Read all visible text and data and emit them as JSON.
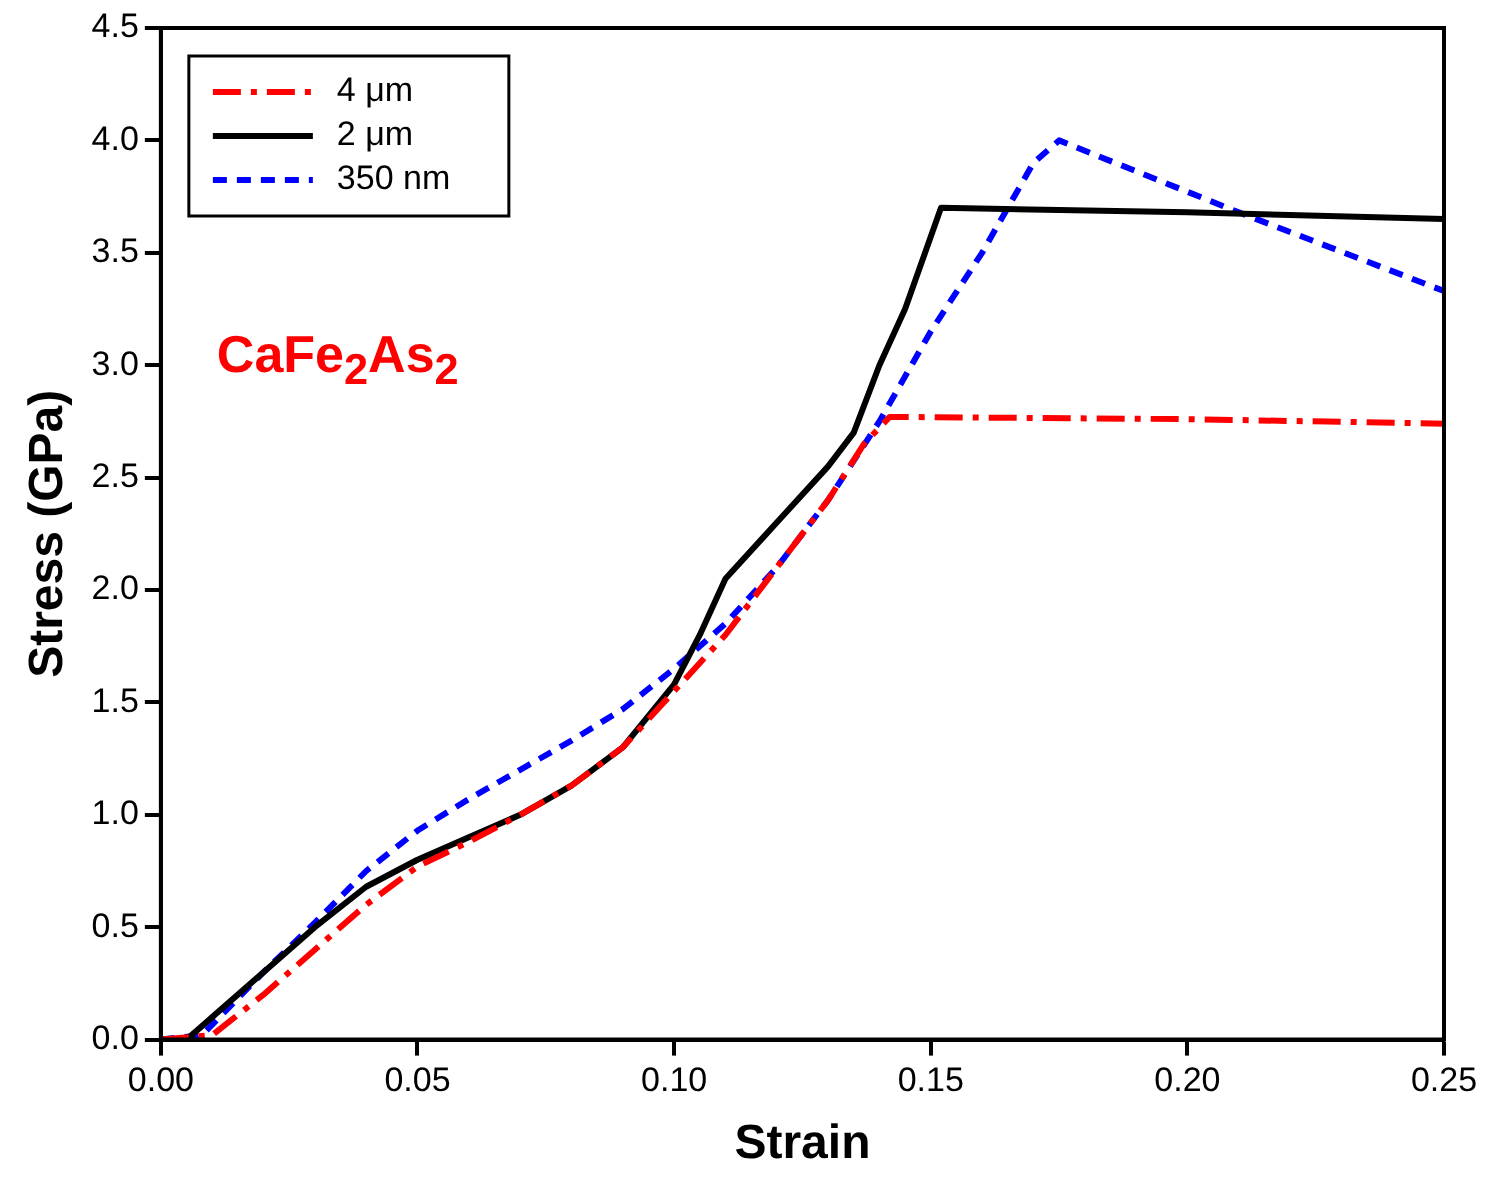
{
  "chart_data": {
    "type": "line",
    "xlabel": "Strain",
    "ylabel": "Stress (GPa)",
    "legend": "top left",
    "marker": "none",
    "grid": false,
    "xlim": [
      0,
      0.25
    ],
    "xticks": [
      {
        "value": 0,
        "label": "0.00"
      },
      {
        "value": 0.05,
        "label": "0.05"
      },
      {
        "value": 0.1,
        "label": "0.10"
      },
      {
        "value": 0.15,
        "label": "0.15"
      },
      {
        "value": 0.2,
        "label": "0.20"
      },
      {
        "value": 0.25,
        "label": "0.25"
      }
    ],
    "ylim": [
      0,
      4.5
    ],
    "yticks": [
      {
        "value": 0,
        "label": "0.0"
      },
      {
        "value": 0.5,
        "label": "0.5"
      },
      {
        "value": 1,
        "label": "1.0"
      },
      {
        "value": 1.5,
        "label": "1.5"
      },
      {
        "value": 2,
        "label": "2.0"
      },
      {
        "value": 2.5,
        "label": "2.5"
      },
      {
        "value": 3,
        "label": "3.0"
      },
      {
        "value": 3.5,
        "label": "3.5"
      },
      {
        "value": 4,
        "label": "4.0"
      },
      {
        "value": 4.5,
        "label": "4.5"
      }
    ],
    "annotations": [
      "CaFe$_{2}$As$_{2}$"
    ],
    "series": [
      {
        "name": "4 μm",
        "color": "#ff0000",
        "line_style": "dashdot",
        "x": [
          0,
          0.01,
          0.02,
          0.03,
          0.04,
          0.05,
          0.06,
          0.07,
          0.08,
          0.09,
          0.1,
          0.11,
          0.12,
          0.13,
          0.137,
          0.142,
          0.2,
          0.25
        ],
        "values": [
          0,
          0.02,
          0.2,
          0.4,
          0.6,
          0.77,
          0.88,
          1.0,
          1.13,
          1.3,
          1.55,
          1.8,
          2.1,
          2.4,
          2.65,
          2.77,
          2.76,
          2.74
        ]
      },
      {
        "name": "2 μm",
        "color": "#000000",
        "line_style": "solid",
        "x": [
          0.005,
          0.01,
          0.02,
          0.03,
          0.04,
          0.05,
          0.06,
          0.07,
          0.08,
          0.09,
          0.1,
          0.105,
          0.11,
          0.12,
          0.13,
          0.135,
          0.14,
          0.145,
          0.152,
          0.2,
          0.25
        ],
        "values": [
          0,
          0.1,
          0.3,
          0.5,
          0.68,
          0.8,
          0.9,
          1.0,
          1.13,
          1.3,
          1.58,
          1.8,
          2.05,
          2.3,
          2.55,
          2.7,
          3.0,
          3.25,
          3.7,
          3.68,
          3.65
        ]
      },
      {
        "name": "350 nm",
        "color": "#0000ff",
        "line_style": "dashed",
        "x": [
          0,
          0.008,
          0.02,
          0.03,
          0.04,
          0.05,
          0.06,
          0.07,
          0.08,
          0.09,
          0.1,
          0.11,
          0.12,
          0.13,
          0.14,
          0.15,
          0.16,
          0.17,
          0.175,
          0.21,
          0.25
        ],
        "values": [
          0,
          0.02,
          0.3,
          0.52,
          0.75,
          0.93,
          1.07,
          1.2,
          1.33,
          1.47,
          1.65,
          1.85,
          2.1,
          2.4,
          2.75,
          3.15,
          3.5,
          3.9,
          4.0,
          3.68,
          3.33
        ]
      }
    ]
  }
}
